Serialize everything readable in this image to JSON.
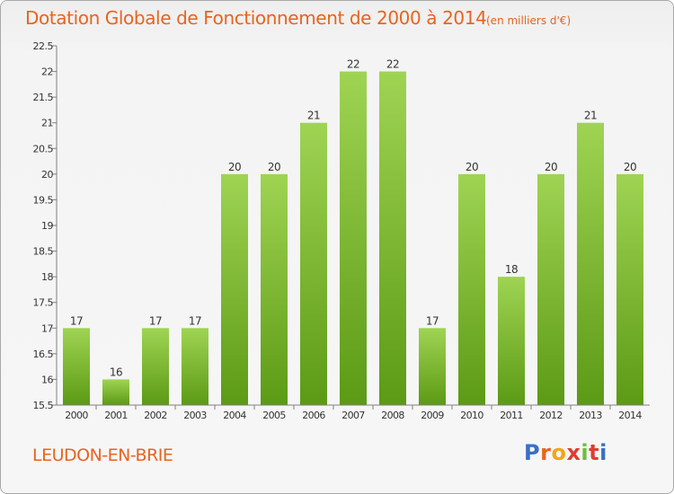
{
  "header": {
    "title": "Dotation Globale de Fonctionnement de 2000 à 2014",
    "unit_note": "(en milliers d'€)"
  },
  "footer": {
    "commune": "LEUDON-EN-BRIE",
    "logo_text": "Proxiti"
  },
  "colors": {
    "title": "#e8641e",
    "bar_top": "#9fd453",
    "bar_bottom": "#5c9a15",
    "axis": "#808080",
    "logo": [
      "#3a6fc4",
      "#e8641e",
      "#f2a51a",
      "#e03c31",
      "#6bbf3b",
      "#e03c31",
      "#3a6fc4"
    ]
  },
  "chart_data": {
    "type": "bar",
    "title": "Dotation Globale de Fonctionnement de 2000 à 2014",
    "subtitle": "(en milliers d'€)",
    "xlabel": "",
    "ylabel": "",
    "categories": [
      "2000",
      "2001",
      "2002",
      "2003",
      "2004",
      "2005",
      "2006",
      "2007",
      "2008",
      "2009",
      "2010",
      "2011",
      "2012",
      "2013",
      "2014"
    ],
    "values": [
      17,
      16,
      17,
      17,
      20,
      20,
      21,
      22,
      22,
      17,
      20,
      18,
      20,
      21,
      20
    ],
    "ylim": [
      15.5,
      22.5
    ],
    "yticks": [
      "15.5",
      "16",
      "16.5",
      "17",
      "17.5",
      "18",
      "18.5",
      "19",
      "19.5",
      "20",
      "20.5",
      "21",
      "21.5",
      "22",
      "22.5"
    ],
    "grid": false,
    "legend": "none"
  }
}
